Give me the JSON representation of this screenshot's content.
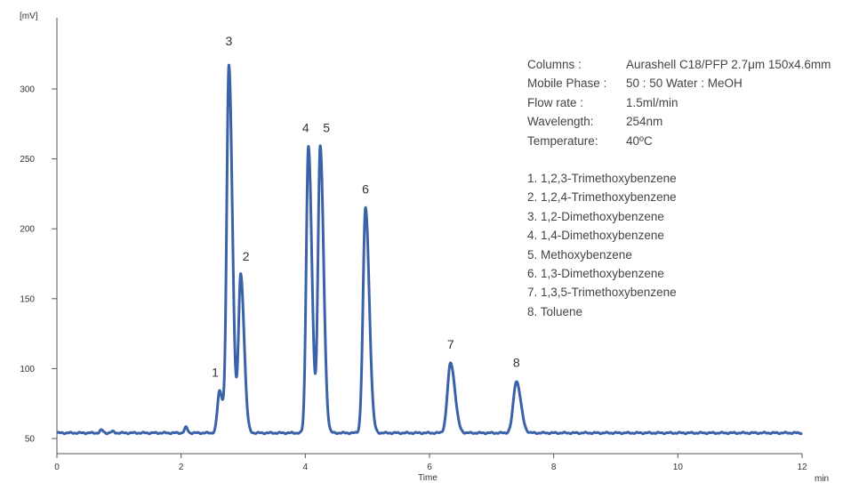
{
  "chart_data": {
    "type": "line",
    "title": "",
    "xlabel": "Time",
    "xunit": "min",
    "yunit": "[mV]",
    "xlim": [
      0,
      12
    ],
    "ylim": [
      40,
      345
    ],
    "xticks": [
      0,
      2,
      4,
      6,
      8,
      10,
      12
    ],
    "yticks": [
      50,
      100,
      150,
      200,
      250,
      300
    ],
    "baseline": 54,
    "series_color": "#3a62a8",
    "grid": false,
    "peaks": [
      {
        "label": "1",
        "rt": 2.62,
        "height": 84
      },
      {
        "label": "3",
        "rt": 2.77,
        "height": 316
      },
      {
        "label": "2",
        "rt": 2.96,
        "height": 167
      },
      {
        "label": "4",
        "rt": 4.05,
        "height": 259
      },
      {
        "label": "5",
        "rt": 4.24,
        "height": 259
      },
      {
        "label": "6",
        "rt": 4.97,
        "height": 215
      },
      {
        "label": "7",
        "rt": 6.34,
        "height": 104
      },
      {
        "label": "8",
        "rt": 7.4,
        "height": 91
      }
    ],
    "minor_peaks": [
      {
        "rt": 0.72,
        "height": 56
      },
      {
        "rt": 0.9,
        "height": 55
      },
      {
        "rt": 2.08,
        "height": 58
      }
    ]
  },
  "conditions": [
    {
      "label": "Columns :",
      "value": "Aurashell C18/PFP 2.7μm 150x4.6mm"
    },
    {
      "label": "Mobile Phase :",
      "value": "50 : 50 Water : MeOH"
    },
    {
      "label": "Flow rate :",
      "value": "1.5ml/min"
    },
    {
      "label": "Wavelength:",
      "value": "254nm"
    },
    {
      "label": "Temperature:",
      "value": "40ºC"
    }
  ],
  "compounds": [
    "1. 1,2,3-Trimethoxybenzene",
    "2. 1,2,4-Trimethoxybenzene",
    "3. 1,2-Dimethoxybenzene",
    "4. 1,4-Dimethoxybenzene",
    "5. Methoxybenzene",
    "6. 1,3-Dimethoxybenzene",
    "7. 1,3,5-Trimethoxybenzene",
    "8. Toluene"
  ]
}
